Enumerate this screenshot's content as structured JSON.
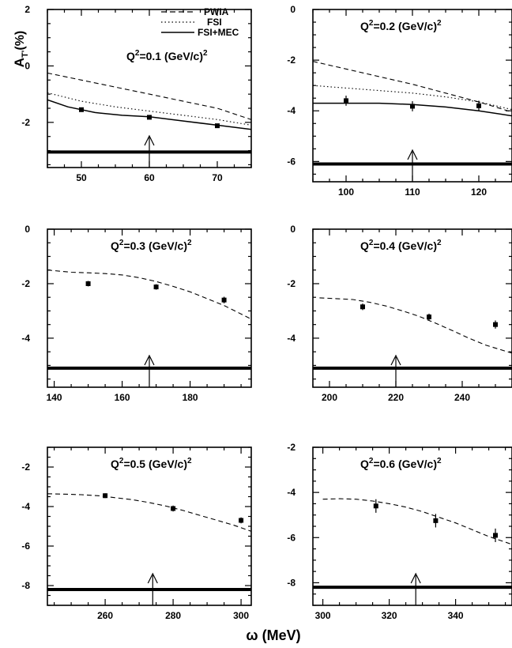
{
  "figure": {
    "ylabel": "A",
    "ylabel_sub": "T'",
    "ylabel_unit": "(%)",
    "xlabel": "ω (MeV)"
  },
  "legend": {
    "placement": "top-right of first panel",
    "entries": [
      {
        "label": "PWIA",
        "style": "dashed"
      },
      {
        "label": "FSI",
        "style": "dotted"
      },
      {
        "label": "FSI+MEC",
        "style": "solid"
      }
    ]
  },
  "chart_data": [
    {
      "type": "line",
      "q2_label": "Q",
      "q2_value": "=0.1 (GeV/c)",
      "xlim": [
        45,
        75
      ],
      "ylim": [
        -3.6,
        2
      ],
      "xticks": [
        50,
        60,
        70
      ],
      "yticks": [
        2,
        0,
        -2
      ],
      "arrow_x": 60,
      "band_y": -3.05,
      "series": [
        {
          "name": "PWIA",
          "style": "dashed",
          "x": [
            45,
            50,
            55,
            60,
            65,
            70,
            75
          ],
          "y": [
            -0.25,
            -0.5,
            -0.75,
            -1.0,
            -1.25,
            -1.5,
            -1.9
          ]
        },
        {
          "name": "FSI",
          "style": "dotted",
          "x": [
            45,
            50,
            55,
            60,
            65,
            70,
            75
          ],
          "y": [
            -0.95,
            -1.25,
            -1.45,
            -1.6,
            -1.75,
            -1.9,
            -2.1
          ]
        },
        {
          "name": "FSI+MEC",
          "style": "solid",
          "x": [
            45,
            48,
            52,
            56,
            60,
            65,
            70,
            75
          ],
          "y": [
            -1.2,
            -1.45,
            -1.65,
            -1.75,
            -1.8,
            -1.95,
            -2.1,
            -2.25
          ]
        }
      ],
      "data": {
        "x": [
          50,
          60,
          70
        ],
        "y": [
          -1.55,
          -1.82,
          -2.12
        ],
        "err": [
          0.06,
          0.06,
          0.06
        ]
      }
    },
    {
      "type": "line",
      "q2_label": "Q",
      "q2_value": "=0.2 (GeV/c)",
      "xlim": [
        95,
        125
      ],
      "ylim": [
        -6.8,
        0
      ],
      "xticks": [
        100,
        110,
        120
      ],
      "yticks": [
        0,
        -2,
        -4,
        -6
      ],
      "arrow_x": 110,
      "band_y": -6.1,
      "series": [
        {
          "name": "PWIA",
          "style": "dashed",
          "x": [
            95,
            100,
            105,
            110,
            115,
            120,
            125
          ],
          "y": [
            -2.05,
            -2.35,
            -2.65,
            -2.95,
            -3.3,
            -3.65,
            -4.05
          ]
        },
        {
          "name": "FSI",
          "style": "dotted",
          "x": [
            95,
            100,
            105,
            110,
            115,
            120,
            125
          ],
          "y": [
            -3.0,
            -3.1,
            -3.2,
            -3.3,
            -3.45,
            -3.65,
            -3.95
          ]
        },
        {
          "name": "FSI+MEC",
          "style": "solid",
          "x": [
            95,
            100,
            105,
            110,
            115,
            120,
            125
          ],
          "y": [
            -3.7,
            -3.7,
            -3.7,
            -3.75,
            -3.85,
            -4.0,
            -4.2
          ]
        }
      ],
      "data": {
        "x": [
          100,
          110,
          120
        ],
        "y": [
          -3.6,
          -3.82,
          -3.8
        ],
        "err": [
          0.2,
          0.2,
          0.2
        ]
      }
    },
    {
      "type": "line",
      "q2_label": "Q",
      "q2_value": "=0.3 (GeV/c)",
      "xlim": [
        138,
        198
      ],
      "ylim": [
        -5.8,
        0
      ],
      "xticks": [
        140,
        160,
        180
      ],
      "yticks": [
        0,
        -2,
        -4
      ],
      "arrow_x": 168,
      "band_y": -5.1,
      "series": [
        {
          "name": "FSI+MEC",
          "style": "dashed",
          "x": [
            138,
            145,
            150,
            155,
            160,
            165,
            170,
            175,
            180,
            185,
            190,
            198
          ],
          "y": [
            -1.5,
            -1.58,
            -1.6,
            -1.63,
            -1.68,
            -1.78,
            -1.92,
            -2.1,
            -2.3,
            -2.55,
            -2.8,
            -3.3
          ]
        }
      ],
      "data": {
        "x": [
          150,
          170,
          190
        ],
        "y": [
          -2.0,
          -2.12,
          -2.6
        ],
        "err": [
          0.1,
          0.1,
          0.12
        ]
      }
    },
    {
      "type": "line",
      "q2_label": "Q",
      "q2_value": "=0.4 (GeV/c)",
      "xlim": [
        195,
        255
      ],
      "ylim": [
        -5.8,
        0
      ],
      "xticks": [
        200,
        220,
        240
      ],
      "yticks": [
        0,
        -2,
        -4
      ],
      "arrow_x": 220,
      "band_y": -5.1,
      "series": [
        {
          "name": "FSI+MEC",
          "style": "dashed",
          "x": [
            197,
            202,
            207,
            212,
            217,
            222,
            227,
            232,
            237,
            242,
            247,
            255
          ],
          "y": [
            -2.52,
            -2.55,
            -2.58,
            -2.68,
            -2.82,
            -3.0,
            -3.2,
            -3.45,
            -3.72,
            -4.0,
            -4.25,
            -4.55
          ]
        }
      ],
      "data": {
        "x": [
          210,
          230,
          250
        ],
        "y": [
          -2.85,
          -3.22,
          -3.5
        ],
        "err": [
          0.12,
          0.12,
          0.15
        ]
      }
    },
    {
      "type": "line",
      "q2_label": "Q",
      "q2_value": "=0.5 (GeV/c)",
      "xlim": [
        243,
        303
      ],
      "ylim": [
        -9,
        -1
      ],
      "xticks": [
        260,
        280,
        300
      ],
      "yticks": [
        -2,
        -4,
        -6,
        -8
      ],
      "arrow_x": 274,
      "band_y": -8.2,
      "series": [
        {
          "name": "FSI+MEC",
          "style": "dashed",
          "x": [
            243,
            248,
            253,
            258,
            263,
            268,
            273,
            278,
            283,
            288,
            293,
            298,
            303
          ],
          "y": [
            -3.35,
            -3.37,
            -3.4,
            -3.45,
            -3.55,
            -3.65,
            -3.8,
            -3.98,
            -4.2,
            -4.45,
            -4.7,
            -4.95,
            -5.25
          ]
        }
      ],
      "data": {
        "x": [
          260,
          280,
          300
        ],
        "y": [
          -3.45,
          -4.1,
          -4.7
        ],
        "err": [
          0.12,
          0.15,
          0.15
        ]
      }
    },
    {
      "type": "line",
      "q2_label": "Q",
      "q2_value": "=0.6 (GeV/c)",
      "xlim": [
        297,
        357
      ],
      "ylim": [
        -9,
        -2
      ],
      "xticks": [
        300,
        320,
        340
      ],
      "yticks": [
        -2,
        -4,
        -6,
        -8
      ],
      "arrow_x": 328,
      "band_y": -8.2,
      "series": [
        {
          "name": "FSI+MEC",
          "style": "dashed",
          "x": [
            300,
            305,
            310,
            315,
            320,
            325,
            330,
            335,
            340,
            345,
            350,
            357
          ],
          "y": [
            -4.3,
            -4.28,
            -4.3,
            -4.38,
            -4.5,
            -4.65,
            -4.85,
            -5.1,
            -5.35,
            -5.65,
            -5.95,
            -6.3
          ]
        }
      ],
      "data": {
        "x": [
          316,
          334,
          352
        ],
        "y": [
          -4.6,
          -5.25,
          -5.9
        ],
        "err": [
          0.3,
          0.3,
          0.3
        ]
      }
    }
  ]
}
